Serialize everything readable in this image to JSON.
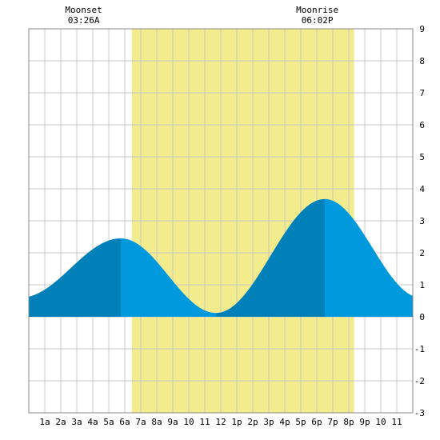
{
  "chart_data": {
    "type": "area",
    "x_unit": "hours",
    "x_range": [
      0,
      24
    ],
    "ylim": [
      -3,
      9
    ],
    "y_ticks": [
      -3,
      -2,
      -1,
      0,
      1,
      2,
      3,
      4,
      5,
      6,
      7,
      8,
      9
    ],
    "x_ticks": [
      {
        "hour": 1,
        "label": "1a"
      },
      {
        "hour": 2,
        "label": "2a"
      },
      {
        "hour": 3,
        "label": "3a"
      },
      {
        "hour": 4,
        "label": "4a"
      },
      {
        "hour": 5,
        "label": "5a"
      },
      {
        "hour": 6,
        "label": "6a"
      },
      {
        "hour": 7,
        "label": "7a"
      },
      {
        "hour": 8,
        "label": "8a"
      },
      {
        "hour": 9,
        "label": "9a"
      },
      {
        "hour": 10,
        "label": "10"
      },
      {
        "hour": 11,
        "label": "11"
      },
      {
        "hour": 12,
        "label": "12"
      },
      {
        "hour": 13,
        "label": "1p"
      },
      {
        "hour": 14,
        "label": "2p"
      },
      {
        "hour": 15,
        "label": "3p"
      },
      {
        "hour": 16,
        "label": "4p"
      },
      {
        "hour": 17,
        "label": "5p"
      },
      {
        "hour": 18,
        "label": "6p"
      },
      {
        "hour": 19,
        "label": "7p"
      },
      {
        "hour": 20,
        "label": "8p"
      },
      {
        "hour": 21,
        "label": "9p"
      },
      {
        "hour": 22,
        "label": "10"
      },
      {
        "hour": 23,
        "label": "11"
      }
    ],
    "daylight": {
      "start": 6.45,
      "end": 20.33
    },
    "tide_extremes": [
      {
        "hour": -0.5,
        "height": 0.6
      },
      {
        "hour": 5.75,
        "height": 2.45
      },
      {
        "hour": 11.7,
        "height": 0.12
      },
      {
        "hour": 18.5,
        "height": 3.68
      },
      {
        "hour": 24.5,
        "height": 0.6
      }
    ],
    "shading_breaks": [
      5.75,
      11.7,
      18.5
    ],
    "moon_events": [
      {
        "label": "Moonset",
        "time": "03:26A",
        "hour": 3.43
      },
      {
        "label": "Moonrise",
        "time": "06:02P",
        "hour": 18.03
      }
    ],
    "grid": true
  },
  "colors": {
    "daylight": "#f2ec8c",
    "tide_dark": "#0080b8",
    "tide_light": "#0099dd",
    "grid": "#c8c8c8",
    "frame": "#888888"
  }
}
